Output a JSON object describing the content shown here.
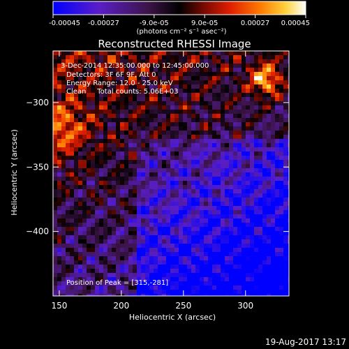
{
  "colorbar": {
    "ticks": [
      "-0.00045",
      "-0.00027",
      "-9.0e-05",
      "9.0e-05",
      "0.00027",
      "0.00045"
    ],
    "tick_values": [
      -0.00045,
      -0.00027,
      -9e-05,
      9e-05,
      0.00027,
      0.00045
    ],
    "range": [
      -0.00045,
      0.00045
    ],
    "units_label": "(photons cm⁻² s⁻¹ asec⁻²)",
    "colors": [
      "#0000ff",
      "#5a1ec8",
      "#3c1446",
      "#000000",
      "#7a0a00",
      "#e01e00",
      "#ff7a00",
      "#ffd23c",
      "#ffffff"
    ]
  },
  "chart_data": {
    "type": "heatmap",
    "title": "Reconstructed RHESSI Image",
    "xlabel": "Heliocentric X (arcsec)",
    "ylabel": "Heliocentric Y (arcsec)",
    "xlim": [
      145,
      335
    ],
    "ylim": [
      -450,
      -260
    ],
    "xticks": [
      150,
      200,
      250,
      300
    ],
    "yticks": [
      -300,
      -350,
      -400
    ],
    "xtick_labels": [
      "150",
      "200",
      "250",
      "300"
    ],
    "ytick_labels": [
      "−300",
      "−350",
      "−400"
    ],
    "annotations": [
      "3-Dec-2014 12:35:00.000 to 12:45:00.000",
      "Detectors: 3F 6F 9F, Att 0",
      "Energy Range: 12.0 - 25.0 keV",
      "Clean     Total counts: 5.06E+03"
    ],
    "peak_label": "Position of Peak = [315,-281]",
    "peak": [
      315,
      -281
    ]
  },
  "footer": {
    "date": "19-Aug-2017 13:17"
  }
}
